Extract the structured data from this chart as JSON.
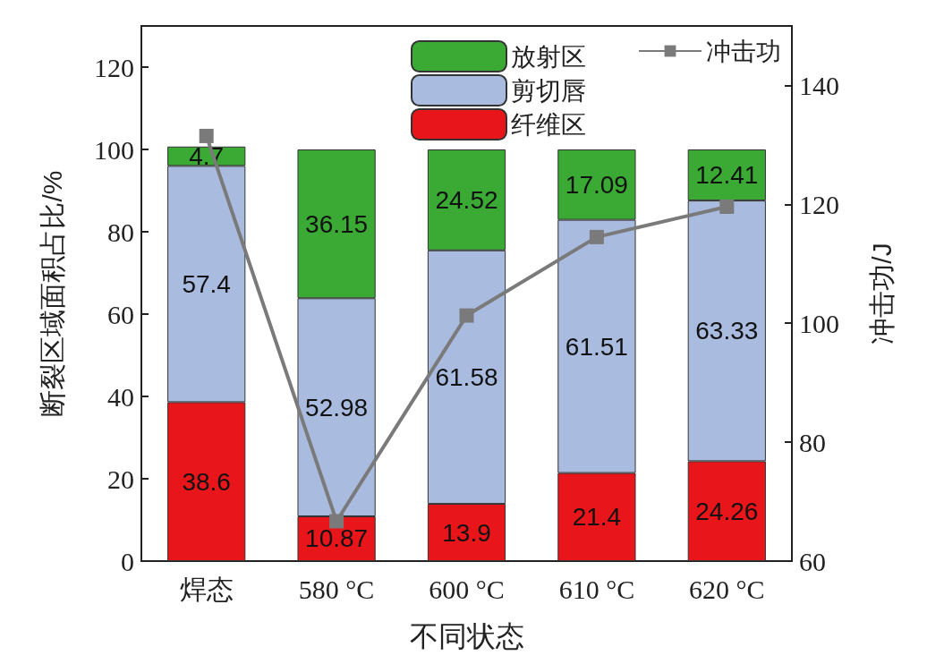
{
  "chart_data": {
    "type": "bar",
    "stacked": true,
    "categories": [
      "焊态",
      "580 °C",
      "600 °C",
      "610 °C",
      "620 °C"
    ],
    "xlabel": "不同状态",
    "ylabel": "断裂区域面积占比/%",
    "y2label": "冲击功/J",
    "ylim": [
      0,
      130
    ],
    "yticks": [
      0,
      20,
      40,
      60,
      80,
      100,
      120
    ],
    "y2lim": [
      60,
      150
    ],
    "y2ticks": [
      60,
      80,
      100,
      120,
      140
    ],
    "legend": "top right",
    "marker": "square",
    "line_style": "solid",
    "grid": false,
    "series": [
      {
        "name": "纤维区",
        "color": "#e8161b",
        "values": [
          38.6,
          10.87,
          13.9,
          21.4,
          24.26
        ],
        "value_labels": [
          "38.6",
          "10.87",
          "13.9",
          "21.4",
          "24.26"
        ]
      },
      {
        "name": "剪切唇",
        "color": "#aabbe0",
        "values": [
          57.4,
          52.98,
          61.58,
          61.51,
          63.33
        ],
        "value_labels": [
          "57.4",
          "52.98",
          "61.58",
          "61.51",
          "63.33"
        ]
      },
      {
        "name": "放射区",
        "color": "#3aaa35",
        "values": [
          4.7,
          36.15,
          24.52,
          17.09,
          12.41
        ],
        "value_labels": [
          "4.7",
          "36.15",
          "24.52",
          "17.09",
          "12.41"
        ]
      },
      {
        "name": "冲击功",
        "type": "line",
        "axis": "y2",
        "color": "#7a7a7a",
        "values": [
          131.5,
          66.7,
          101.3,
          114.5,
          119.6
        ]
      }
    ]
  }
}
